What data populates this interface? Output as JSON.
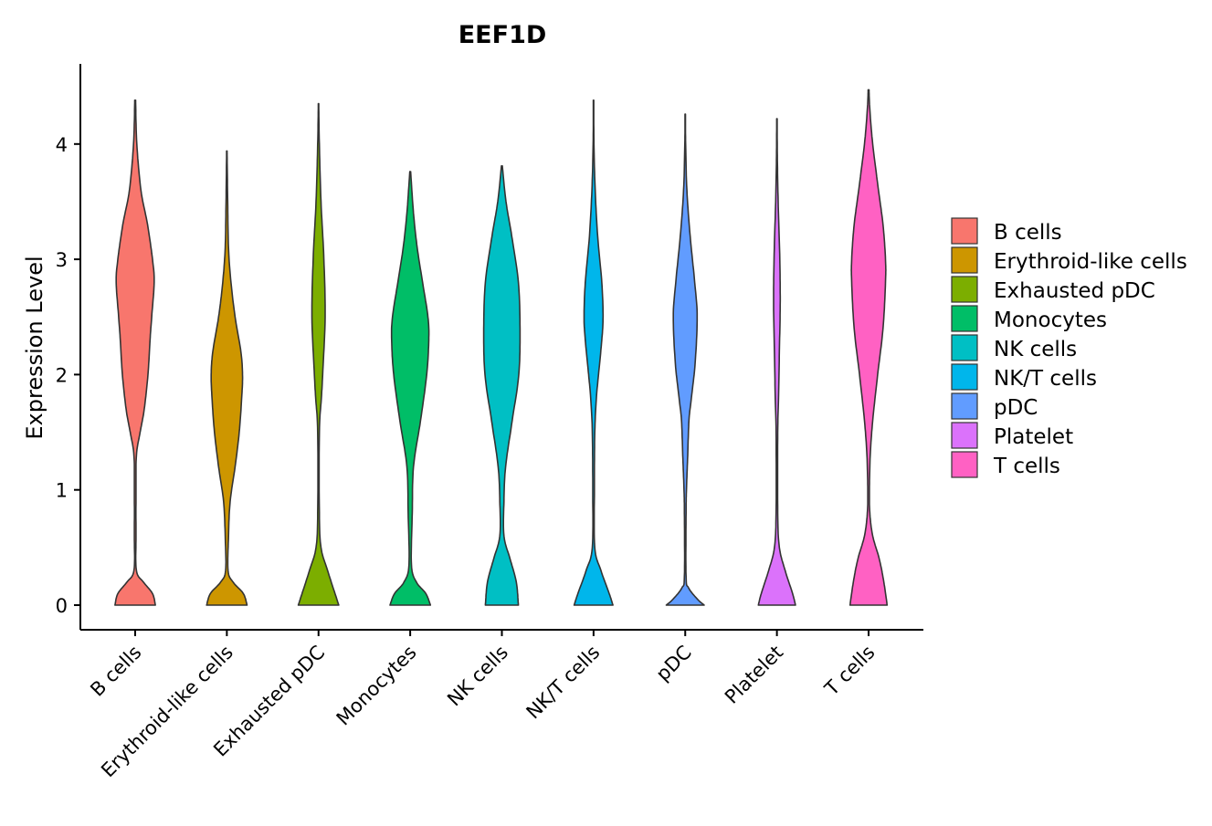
{
  "chart_data": {
    "type": "violin",
    "title": "EEF1D",
    "xlabel": "",
    "ylabel": "Expression Level",
    "ylim": [
      -0.2,
      4.6
    ],
    "yticks": [
      0,
      1,
      2,
      3,
      4
    ],
    "grid": false,
    "legend_position": "right",
    "categories": [
      "B cells",
      "Erythroid-like cells",
      "Exhausted pDC",
      "Monocytes",
      "NK cells",
      "NK/T cells",
      "pDC",
      "Platelet",
      "T cells"
    ],
    "series": [
      {
        "name": "B cells",
        "color": "#F8766D",
        "max": 4.38,
        "profile": [
          [
            0,
            0.49
          ],
          [
            0.1,
            0.42
          ],
          [
            0.2,
            0.2
          ],
          [
            0.3,
            0.03
          ],
          [
            0.6,
            0.02
          ],
          [
            1.0,
            0.02
          ],
          [
            1.3,
            0.03
          ],
          [
            1.5,
            0.12
          ],
          [
            1.7,
            0.22
          ],
          [
            2.0,
            0.31
          ],
          [
            2.3,
            0.36
          ],
          [
            2.5,
            0.4
          ],
          [
            2.8,
            0.46
          ],
          [
            3.0,
            0.42
          ],
          [
            3.3,
            0.3
          ],
          [
            3.6,
            0.14
          ],
          [
            4.0,
            0.04
          ],
          [
            4.38,
            0.01
          ]
        ]
      },
      {
        "name": "Erythroid-like cells",
        "color": "#CD9600",
        "max": 3.94,
        "profile": [
          [
            0,
            0.49
          ],
          [
            0.1,
            0.4
          ],
          [
            0.2,
            0.15
          ],
          [
            0.3,
            0.03
          ],
          [
            0.6,
            0.04
          ],
          [
            0.9,
            0.08
          ],
          [
            1.2,
            0.2
          ],
          [
            1.5,
            0.3
          ],
          [
            1.8,
            0.36
          ],
          [
            2.0,
            0.38
          ],
          [
            2.2,
            0.34
          ],
          [
            2.5,
            0.2
          ],
          [
            2.8,
            0.1
          ],
          [
            3.1,
            0.04
          ],
          [
            3.5,
            0.02
          ],
          [
            3.94,
            0.005
          ]
        ]
      },
      {
        "name": "Exhausted pDC",
        "color": "#7CAE00",
        "max": 4.35,
        "profile": [
          [
            0,
            0.49
          ],
          [
            0.1,
            0.4
          ],
          [
            0.3,
            0.22
          ],
          [
            0.5,
            0.06
          ],
          [
            0.8,
            0.02
          ],
          [
            1.5,
            0.02
          ],
          [
            1.8,
            0.07
          ],
          [
            2.0,
            0.1
          ],
          [
            2.5,
            0.16
          ],
          [
            3.0,
            0.13
          ],
          [
            3.5,
            0.06
          ],
          [
            4.0,
            0.02
          ],
          [
            4.35,
            0.005
          ]
        ]
      },
      {
        "name": "Monocytes",
        "color": "#00BE67",
        "max": 3.76,
        "profile": [
          [
            0,
            0.49
          ],
          [
            0.1,
            0.38
          ],
          [
            0.2,
            0.15
          ],
          [
            0.35,
            0.03
          ],
          [
            0.8,
            0.05
          ],
          [
            1.2,
            0.08
          ],
          [
            1.6,
            0.25
          ],
          [
            2.0,
            0.4
          ],
          [
            2.3,
            0.45
          ],
          [
            2.5,
            0.43
          ],
          [
            2.8,
            0.3
          ],
          [
            3.1,
            0.17
          ],
          [
            3.4,
            0.08
          ],
          [
            3.76,
            0.01
          ]
        ]
      },
      {
        "name": "NK cells",
        "color": "#00BFC4",
        "max": 3.81,
        "profile": [
          [
            0,
            0.4
          ],
          [
            0.2,
            0.35
          ],
          [
            0.4,
            0.2
          ],
          [
            0.6,
            0.05
          ],
          [
            0.9,
            0.05
          ],
          [
            1.2,
            0.09
          ],
          [
            1.6,
            0.25
          ],
          [
            2.0,
            0.41
          ],
          [
            2.4,
            0.44
          ],
          [
            2.8,
            0.4
          ],
          [
            3.2,
            0.24
          ],
          [
            3.5,
            0.1
          ],
          [
            3.81,
            0.01
          ]
        ]
      },
      {
        "name": "NK/T cells",
        "color": "#00B6EB",
        "max": 4.38,
        "profile": [
          [
            0,
            0.47
          ],
          [
            0.1,
            0.38
          ],
          [
            0.3,
            0.18
          ],
          [
            0.5,
            0.03
          ],
          [
            1.0,
            0.02
          ],
          [
            1.5,
            0.03
          ],
          [
            1.8,
            0.07
          ],
          [
            2.0,
            0.12
          ],
          [
            2.3,
            0.2
          ],
          [
            2.5,
            0.23
          ],
          [
            2.8,
            0.2
          ],
          [
            3.2,
            0.1
          ],
          [
            3.6,
            0.04
          ],
          [
            4.0,
            0.01
          ],
          [
            4.38,
            0.005
          ]
        ]
      },
      {
        "name": "pDC",
        "color": "#619CFF",
        "max": 4.26,
        "profile": [
          [
            0,
            0.46
          ],
          [
            0.05,
            0.3
          ],
          [
            0.15,
            0.08
          ],
          [
            0.25,
            0.02
          ],
          [
            0.8,
            0.02
          ],
          [
            1.0,
            0.03
          ],
          [
            1.3,
            0.06
          ],
          [
            1.6,
            0.09
          ],
          [
            1.8,
            0.15
          ],
          [
            2.1,
            0.24
          ],
          [
            2.5,
            0.29
          ],
          [
            2.8,
            0.23
          ],
          [
            3.2,
            0.12
          ],
          [
            3.6,
            0.04
          ],
          [
            4.0,
            0.01
          ],
          [
            4.26,
            0.005
          ]
        ]
      },
      {
        "name": "Platelet",
        "color": "#DB72FB",
        "max": 4.22,
        "profile": [
          [
            0,
            0.45
          ],
          [
            0.1,
            0.38
          ],
          [
            0.3,
            0.2
          ],
          [
            0.5,
            0.06
          ],
          [
            0.8,
            0.02
          ],
          [
            1.5,
            0.02
          ],
          [
            1.8,
            0.04
          ],
          [
            2.2,
            0.06
          ],
          [
            2.6,
            0.08
          ],
          [
            3.0,
            0.07
          ],
          [
            3.5,
            0.03
          ],
          [
            3.9,
            0.01
          ],
          [
            4.22,
            0.005
          ]
        ]
      },
      {
        "name": "T cells",
        "color": "#FF61C3",
        "max": 4.47,
        "profile": [
          [
            0,
            0.45
          ],
          [
            0.2,
            0.37
          ],
          [
            0.4,
            0.26
          ],
          [
            0.6,
            0.1
          ],
          [
            0.8,
            0.03
          ],
          [
            1.0,
            0.02
          ],
          [
            1.3,
            0.04
          ],
          [
            1.6,
            0.1
          ],
          [
            2.0,
            0.22
          ],
          [
            2.4,
            0.35
          ],
          [
            2.8,
            0.41
          ],
          [
            3.0,
            0.41
          ],
          [
            3.3,
            0.35
          ],
          [
            3.6,
            0.24
          ],
          [
            4.0,
            0.1
          ],
          [
            4.3,
            0.03
          ],
          [
            4.47,
            0.01
          ]
        ]
      }
    ]
  }
}
